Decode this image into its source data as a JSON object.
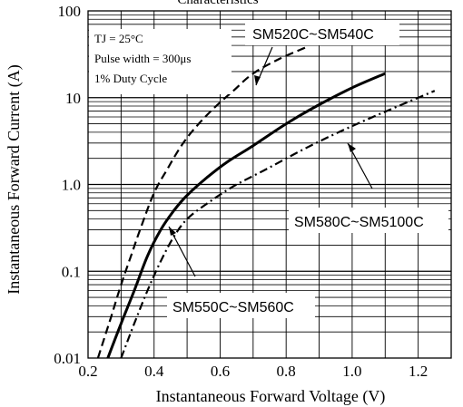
{
  "chart_data": {
    "type": "line",
    "title": "Characteristics",
    "xlabel": "Instantaneous Forward Voltage (V)",
    "ylabel": "Instantaneous Forward Current (A)",
    "xlim": [
      0.2,
      1.3
    ],
    "ylim": [
      0.01,
      100
    ],
    "yscale": "log",
    "grid": true,
    "x_ticks": [
      "0.2",
      "0.4",
      "0.6",
      "0.8",
      "1.0",
      "1.2"
    ],
    "y_ticks": [
      "0.01",
      "0.1",
      "1.0",
      "10",
      "100"
    ],
    "conditions": [
      "TJ = 25°C",
      "Pulse width = 300μs",
      "1% Duty Cycle"
    ],
    "series": [
      {
        "name": "SM520C~SM540C",
        "style": "dashed",
        "x": [
          0.23,
          0.27,
          0.3,
          0.33,
          0.36,
          0.4,
          0.44,
          0.48,
          0.52,
          0.58,
          0.64,
          0.7,
          0.78,
          0.86
        ],
        "y": [
          0.01,
          0.03,
          0.07,
          0.15,
          0.32,
          0.8,
          1.5,
          2.7,
          4.3,
          7.5,
          12,
          19,
          28,
          38
        ]
      },
      {
        "name": "SM550C~SM560C",
        "style": "solid",
        "x": [
          0.26,
          0.3,
          0.34,
          0.38,
          0.42,
          0.46,
          0.5,
          0.56,
          0.62,
          0.7,
          0.8,
          0.9,
          1.0,
          1.1
        ],
        "y": [
          0.01,
          0.025,
          0.06,
          0.15,
          0.3,
          0.5,
          0.75,
          1.2,
          1.8,
          2.8,
          5.0,
          8.3,
          13,
          19
        ]
      },
      {
        "name": "SM580C~SM5100C",
        "style": "dash-dot",
        "x": [
          0.3,
          0.34,
          0.38,
          0.42,
          0.46,
          0.5,
          0.56,
          0.64,
          0.74,
          0.84,
          0.94,
          1.04,
          1.14,
          1.25
        ],
        "y": [
          0.01,
          0.025,
          0.06,
          0.13,
          0.25,
          0.4,
          0.6,
          0.95,
          1.5,
          2.4,
          3.7,
          5.5,
          8.0,
          12
        ]
      }
    ]
  }
}
